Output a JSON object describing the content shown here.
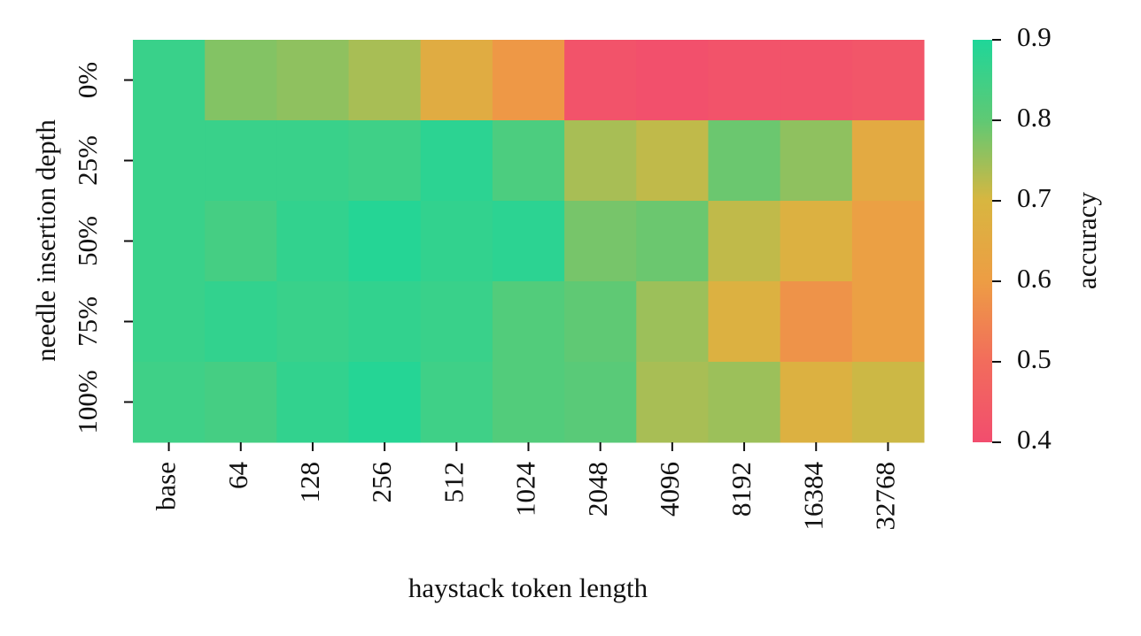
{
  "chart_data": {
    "type": "heatmap",
    "x_label": "haystack token length",
    "y_label": "needle insertion depth",
    "colorbar_label": "accuracy",
    "categories": [
      "base",
      "64",
      "128",
      "256",
      "512",
      "1024",
      "2048",
      "4096",
      "8192",
      "16384",
      "32768"
    ],
    "rows": [
      "0%",
      "25%",
      "50%",
      "75%",
      "100%"
    ],
    "values": [
      [
        0.86,
        0.77,
        0.76,
        0.74,
        0.66,
        0.59,
        0.42,
        0.41,
        0.42,
        0.42,
        0.43
      ],
      [
        0.86,
        0.86,
        0.86,
        0.85,
        0.88,
        0.83,
        0.74,
        0.72,
        0.79,
        0.76,
        0.65
      ],
      [
        0.86,
        0.84,
        0.87,
        0.89,
        0.87,
        0.88,
        0.78,
        0.79,
        0.72,
        0.68,
        0.61
      ],
      [
        0.86,
        0.87,
        0.86,
        0.87,
        0.86,
        0.82,
        0.8,
        0.75,
        0.68,
        0.58,
        0.61
      ],
      [
        0.85,
        0.84,
        0.87,
        0.89,
        0.85,
        0.82,
        0.81,
        0.74,
        0.75,
        0.68,
        0.71
      ]
    ],
    "clim": [
      0.4,
      0.9
    ],
    "cticks": [
      0.4,
      0.5,
      0.6,
      0.7,
      0.8,
      0.9
    ],
    "colormap": [
      "#f24d6e",
      "#f26c5c",
      "#ed9d44",
      "#d8b640",
      "#5fc974",
      "#1fd699"
    ]
  }
}
